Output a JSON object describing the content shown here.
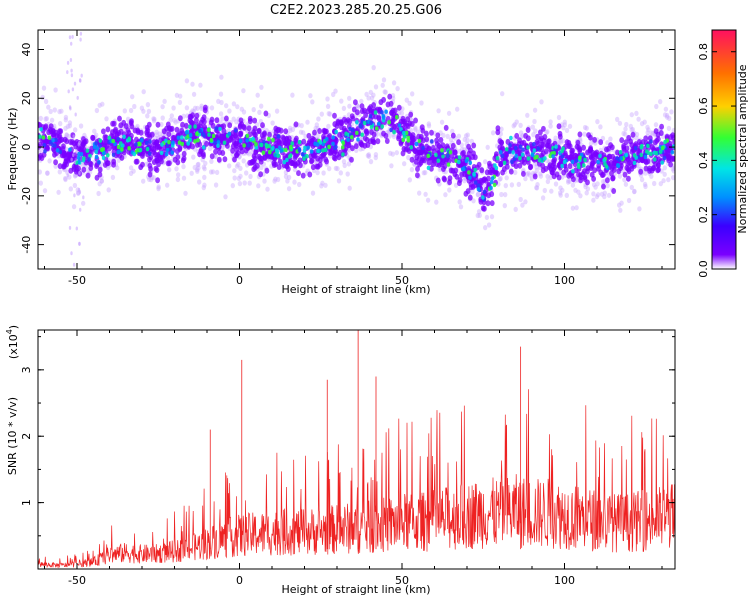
{
  "title": "C2E2.2023.285.20.25.G06",
  "colors": {
    "snr_line": "#ee2222",
    "colormap": [
      "#ffffff",
      "#3a00ff",
      "#0090ff",
      "#00e5e5",
      "#33ff33",
      "#ffd000",
      "#ff7000",
      "#ff1060"
    ],
    "spectral_points": "#7a00ff"
  },
  "chart_data": [
    {
      "type": "heatmap",
      "xlabel": "Height of straight line (km)",
      "ylabel": "Frequency (Hz)",
      "xlim": [
        -62,
        134
      ],
      "ylim": [
        -50,
        48
      ],
      "xticks": [
        -50,
        0,
        50,
        100
      ],
      "yticks": [
        -40,
        -20,
        0,
        20,
        40
      ],
      "ridge_x": [
        -62,
        -55,
        -50,
        -45,
        -40,
        -35,
        -30,
        -25,
        -20,
        -15,
        -10,
        -5,
        0,
        5,
        10,
        15,
        20,
        25,
        30,
        35,
        40,
        45,
        50,
        55,
        60,
        65,
        70,
        73,
        75,
        78,
        80,
        85,
        90,
        95,
        100,
        105,
        110,
        115,
        120,
        125,
        130,
        134
      ],
      "ridge_y": [
        5,
        0,
        -5,
        -3,
        0,
        3,
        0,
        -2,
        2,
        6,
        5,
        2,
        3,
        1,
        0,
        -1,
        -2,
        0,
        2,
        5,
        10,
        12,
        8,
        0,
        -3,
        -5,
        -8,
        -14,
        -20,
        -12,
        -3,
        -3,
        -2,
        -3,
        -4,
        -6,
        -5,
        -7,
        -3,
        -2,
        -2,
        0
      ],
      "colorbar": {
        "label": "Normalized spectral amplitude",
        "range": [
          0,
          0.88
        ],
        "ticks": [
          0.0,
          0.2,
          0.4,
          0.6,
          0.8
        ],
        "tick_labels": [
          "0.0",
          "0.2",
          "0.4",
          "0.6",
          "0.8"
        ]
      }
    },
    {
      "type": "line",
      "xlabel": "Height of straight line (km)",
      "ylabel": "SNR (10 * v/v)",
      "multiplier": "(x10",
      "multiplier_exp": "4",
      "multiplier_close": ")",
      "xlim": [
        -62,
        134
      ],
      "ylim": [
        0,
        3.6
      ],
      "xticks": [
        -50,
        0,
        50,
        100
      ],
      "yticks": [
        1,
        2,
        3
      ],
      "envelope_x": [
        -62,
        -55,
        -50,
        -45,
        -40,
        -35,
        -30,
        -25,
        -20,
        -15,
        -10,
        -5,
        0,
        5,
        10,
        15,
        20,
        25,
        30,
        35,
        40,
        45,
        50,
        55,
        60,
        65,
        70,
        75,
        80,
        85,
        90,
        95,
        100,
        105,
        110,
        115,
        120,
        125,
        130,
        134
      ],
      "envelope_y": [
        0.1,
        0.08,
        0.1,
        0.15,
        0.3,
        0.35,
        0.32,
        0.33,
        0.38,
        0.45,
        0.55,
        0.65,
        0.72,
        0.75,
        0.78,
        0.8,
        0.8,
        0.82,
        0.85,
        0.88,
        0.9,
        0.95,
        1.0,
        1.0,
        1.05,
        1.1,
        1.15,
        1.2,
        1.2,
        1.25,
        1.2,
        1.2,
        1.15,
        1.1,
        1.05,
        1.0,
        1.0,
        1.05,
        1.1,
        1.15
      ],
      "peaks": [
        {
          "x": 0.7,
          "y": 3.15
        },
        {
          "x": 36.5,
          "y": 3.6
        },
        {
          "x": 86.5,
          "y": 3.35
        },
        {
          "x": 27,
          "y": 2.85
        },
        {
          "x": 42,
          "y": 2.9
        },
        {
          "x": -9,
          "y": 2.1
        }
      ]
    }
  ]
}
